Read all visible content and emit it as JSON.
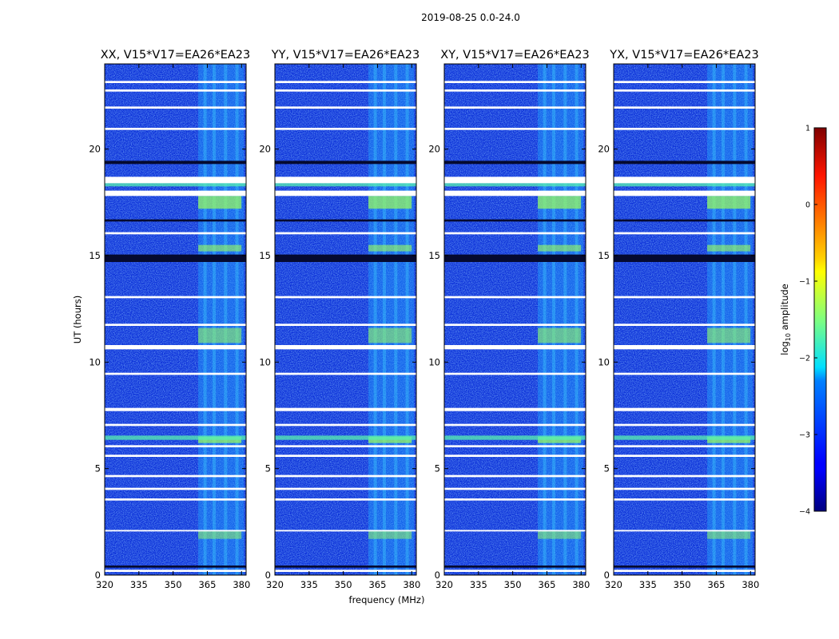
{
  "chart_data": {
    "type": "heatmap",
    "suptitle": "2019-08-25 0.0-24.0",
    "xlabel": "frequency (MHz)",
    "ylabel": "UT (hours)",
    "xlim": [
      320,
      382
    ],
    "ylim": [
      0,
      24
    ],
    "xticks": [
      "320",
      "335",
      "350",
      "365",
      "380"
    ],
    "xtick_values": [
      320,
      335,
      350,
      365,
      380
    ],
    "yticks": [
      "0",
      "5",
      "10",
      "15",
      "20"
    ],
    "ytick_values": [
      0,
      5,
      10,
      15,
      20
    ],
    "panels": [
      {
        "title": "XX, V15*V17=EA26*EA23"
      },
      {
        "title": "YY, V15*V17=EA26*EA23"
      },
      {
        "title": "XY, V15*V17=EA26*EA23"
      },
      {
        "title": "YX, V15*V17=EA26*EA23"
      }
    ],
    "rfi_band_mhz": [
      361,
      381
    ],
    "flagged_time_ranges_hours": [
      [
        23.1,
        23.2
      ],
      [
        22.7,
        22.8
      ],
      [
        21.9,
        22.0
      ],
      [
        20.9,
        21.0
      ],
      [
        18.4,
        18.7
      ],
      [
        17.8,
        18.05
      ],
      [
        16.0,
        16.1
      ],
      [
        13.0,
        13.1
      ],
      [
        11.7,
        11.8
      ],
      [
        10.6,
        10.8
      ],
      [
        9.4,
        9.5
      ],
      [
        7.7,
        7.85
      ],
      [
        7.0,
        7.1
      ],
      [
        6.0,
        6.1
      ],
      [
        5.55,
        5.65
      ],
      [
        4.6,
        4.7
      ],
      [
        4.0,
        4.1
      ],
      [
        3.5,
        3.6
      ],
      [
        2.05,
        2.12
      ],
      [
        0.15,
        0.25
      ]
    ],
    "blank_time_ranges_hours": [
      [
        14.7,
        15.05
      ],
      [
        16.6,
        16.7
      ],
      [
        19.3,
        19.45
      ],
      [
        0.35,
        0.45
      ]
    ],
    "colorbar": {
      "label_prefix": "log",
      "label_sub": "10",
      "label_suffix": " amplitude",
      "range": [
        -4,
        1
      ],
      "ticks": [
        "1",
        "0",
        "−1",
        "−2",
        "−3",
        "−4"
      ],
      "tick_values": [
        1,
        0,
        -1,
        -2,
        -3,
        -4
      ],
      "colormap": "jet"
    }
  }
}
